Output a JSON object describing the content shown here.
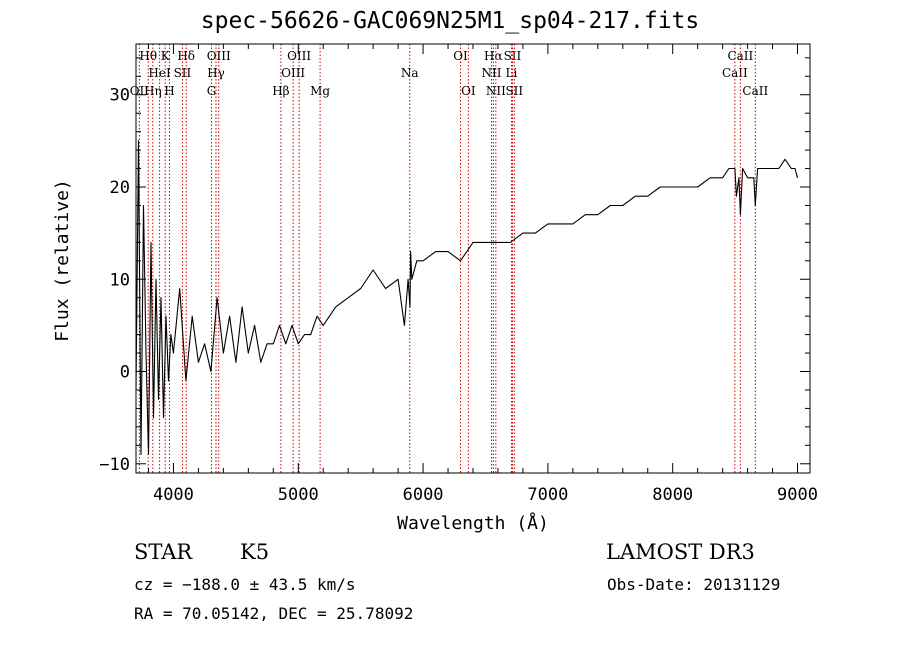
{
  "chart_data": {
    "type": "line",
    "title": "spec-56626-GAC069N25M1_sp04-217.fits",
    "xlabel": "Wavelength (Å)",
    "ylabel": "Flux (relative)",
    "xlim": [
      3700,
      9100
    ],
    "ylim": [
      -11,
      35.5
    ],
    "xticks": [
      4000,
      5000,
      6000,
      7000,
      8000,
      9000
    ],
    "xtick_labels": [
      "4000",
      "5000",
      "6000",
      "7000",
      "8000",
      "9000"
    ],
    "yticks": [
      -10,
      0,
      10,
      20,
      30
    ],
    "ytick_labels": [
      "−10",
      "0",
      "10",
      "20",
      "30"
    ],
    "grid": false,
    "series": [
      {
        "name": "spectrum",
        "x": [
          3700,
          3720,
          3740,
          3760,
          3780,
          3800,
          3820,
          3840,
          3860,
          3880,
          3900,
          3920,
          3940,
          3960,
          3980,
          4000,
          4050,
          4100,
          4150,
          4200,
          4250,
          4300,
          4350,
          4400,
          4450,
          4500,
          4550,
          4600,
          4650,
          4700,
          4750,
          4800,
          4850,
          4900,
          4950,
          5000,
          5050,
          5100,
          5150,
          5200,
          5300,
          5400,
          5500,
          5600,
          5700,
          5800,
          5850,
          5880,
          5895,
          5900,
          5910,
          5930,
          5950,
          6000,
          6100,
          6200,
          6300,
          6350,
          6400,
          6500,
          6560,
          6600,
          6700,
          6800,
          6900,
          7000,
          7100,
          7200,
          7300,
          7400,
          7500,
          7600,
          7700,
          7800,
          7900,
          8000,
          8100,
          8200,
          8300,
          8400,
          8450,
          8498,
          8510,
          8530,
          8542,
          8560,
          8600,
          8650,
          8662,
          8680,
          8700,
          8750,
          8800,
          8850,
          8900,
          8950,
          8980,
          9000
        ],
        "y": [
          -2,
          25,
          -9,
          18,
          2,
          -9,
          14,
          -5,
          10,
          -3,
          8,
          -5,
          6,
          -1,
          4,
          2,
          9,
          -1,
          6,
          1,
          3,
          0,
          8,
          2,
          6,
          1,
          7,
          2,
          5,
          1,
          3,
          3,
          5,
          3,
          5,
          3,
          4,
          4,
          6,
          5,
          7,
          8,
          9,
          11,
          9,
          10,
          5,
          10,
          7,
          13,
          10,
          11,
          12,
          12,
          13,
          13,
          12,
          13,
          14,
          14,
          14,
          14,
          14,
          15,
          15,
          16,
          16,
          16,
          17,
          17,
          18,
          18,
          19,
          19,
          20,
          20,
          20,
          20,
          21,
          21,
          22,
          22,
          19,
          21,
          17,
          22,
          21,
          21,
          18,
          22,
          22,
          22,
          22,
          22,
          23,
          22,
          22,
          21
        ],
        "color": "#000000"
      }
    ],
    "line_markers": [
      {
        "name": "Hθ",
        "wavelength": 3798,
        "row": 1
      },
      {
        "name": "OII",
        "wavelength": 3727,
        "row": 3
      },
      {
        "name": "Hη",
        "wavelength": 3835,
        "row": 3
      },
      {
        "name": "HeI",
        "wavelength": 3889,
        "row": 2
      },
      {
        "name": "K",
        "wavelength": 3934,
        "row": 1
      },
      {
        "name": "H",
        "wavelength": 3968,
        "row": 3
      },
      {
        "name": "SII",
        "wavelength": 4072,
        "row": 2
      },
      {
        "name": "Hδ",
        "wavelength": 4102,
        "row": 1
      },
      {
        "name": "G",
        "wavelength": 4305,
        "row": 3
      },
      {
        "name": "Hγ",
        "wavelength": 4341,
        "row": 2
      },
      {
        "name": "OIII",
        "wavelength": 4363,
        "row": 1
      },
      {
        "name": "Hβ",
        "wavelength": 4861,
        "row": 3
      },
      {
        "name": "OIII",
        "wavelength": 4959,
        "row": 2
      },
      {
        "name": "OIII",
        "wavelength": 5007,
        "row": 1
      },
      {
        "name": "Mg",
        "wavelength": 5175,
        "row": 3
      },
      {
        "name": "Na",
        "wavelength": 5893,
        "row": 2
      },
      {
        "name": "OI",
        "wavelength": 6300,
        "row": 1
      },
      {
        "name": "OI",
        "wavelength": 6363,
        "row": 3
      },
      {
        "name": "NII",
        "wavelength": 6548,
        "row": 2
      },
      {
        "name": "Hα",
        "wavelength": 6563,
        "row": 1
      },
      {
        "name": "NII",
        "wavelength": 6583,
        "row": 3
      },
      {
        "name": "Li",
        "wavelength": 6708,
        "row": 2
      },
      {
        "name": "SII",
        "wavelength": 6716,
        "row": 1
      },
      {
        "name": "SII",
        "wavelength": 6731,
        "row": 3
      },
      {
        "name": "CaII",
        "wavelength": 8498,
        "row": 2
      },
      {
        "name": "CaII",
        "wavelength": 8542,
        "row": 1
      },
      {
        "name": "CaII",
        "wavelength": 8662,
        "row": 3
      }
    ],
    "marker_color": "#cc0000"
  },
  "footer": {
    "object_class": "STAR",
    "subclass": "K5",
    "survey": "LAMOST DR3",
    "cz": "cz = −188.0 ± 43.5 km/s",
    "obs_date": "Obs-Date: 20131129",
    "coords": "RA =  70.05142, DEC =  25.78092"
  }
}
